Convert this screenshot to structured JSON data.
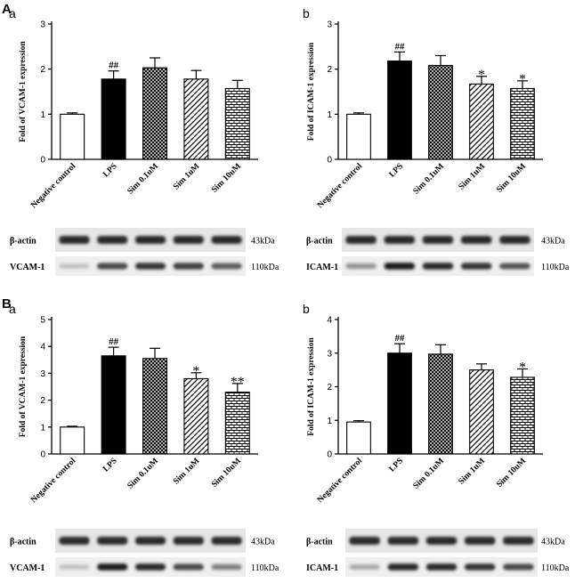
{
  "figure": {
    "panels": [
      {
        "letter": "A",
        "charts": [
          "Aa",
          "Ab"
        ]
      },
      {
        "letter": "B",
        "charts": [
          "Ba",
          "Bb"
        ]
      }
    ]
  },
  "chart_data": [
    {
      "id": "Aa",
      "type": "bar",
      "sub": "a",
      "ylabel": "Fold of VCAM-1 expression",
      "categories": [
        "Negative control",
        "LPS",
        "Sim 0.1uM",
        "Sim 1uM",
        "Sim 10uM"
      ],
      "values": [
        1.0,
        1.78,
        2.03,
        1.78,
        1.57
      ],
      "errors": [
        0.03,
        0.18,
        0.22,
        0.19,
        0.18
      ],
      "significance": [
        "",
        "##",
        "",
        "",
        ""
      ],
      "patterns": [
        "white",
        "black",
        "crosshatch",
        "diagonal",
        "brick"
      ],
      "ylim": [
        0,
        3
      ],
      "yticks": [
        0,
        1,
        2,
        3
      ],
      "blot": {
        "rows": [
          {
            "label": "β-actin",
            "size": "43kDa",
            "band": [
              0.9,
              0.9,
              0.9,
              0.9,
              0.9
            ]
          },
          {
            "label": "VCAM-1",
            "size": "110kDa",
            "band": [
              0.2,
              0.75,
              0.85,
              0.8,
              0.65
            ]
          }
        ]
      }
    },
    {
      "id": "Ab",
      "type": "bar",
      "sub": "b",
      "ylabel": "Fold of ICAM-1 expression",
      "categories": [
        "Negative control",
        "LPS",
        "Sim 0.1uM",
        "Sim 1uM",
        "Sim 10uM"
      ],
      "values": [
        1.0,
        2.18,
        2.08,
        1.67,
        1.57
      ],
      "errors": [
        0.03,
        0.2,
        0.22,
        0.17,
        0.17
      ],
      "significance": [
        "",
        "##",
        "",
        "*",
        "*"
      ],
      "patterns": [
        "white",
        "black",
        "crosshatch",
        "diagonal",
        "brick"
      ],
      "ylim": [
        0,
        3
      ],
      "yticks": [
        0,
        1,
        2,
        3
      ],
      "blot": {
        "rows": [
          {
            "label": "β-actin",
            "size": "43kDa",
            "band": [
              0.9,
              0.9,
              0.9,
              0.9,
              0.9
            ]
          },
          {
            "label": "ICAM-1",
            "size": "110kDa",
            "band": [
              0.4,
              0.95,
              0.9,
              0.85,
              0.7
            ]
          }
        ]
      }
    },
    {
      "id": "Ba",
      "type": "bar",
      "sub": "a",
      "ylabel": "Fold of VCAM-1 expression",
      "categories": [
        "Negative control",
        "LPS",
        "Sim 0.1uM",
        "Sim 1uM",
        "Sim 10uM"
      ],
      "values": [
        1.0,
        3.65,
        3.55,
        2.8,
        2.3
      ],
      "errors": [
        0.03,
        0.32,
        0.38,
        0.22,
        0.32
      ],
      "significance": [
        "",
        "##",
        "",
        "*",
        "**"
      ],
      "patterns": [
        "white",
        "black",
        "crosshatch",
        "diagonal",
        "brick"
      ],
      "ylim": [
        0,
        5
      ],
      "yticks": [
        0,
        1,
        2,
        3,
        4,
        5
      ],
      "blot": {
        "rows": [
          {
            "label": "β-actin",
            "size": "43kDa",
            "band": [
              0.9,
              0.9,
              0.9,
              0.9,
              0.9
            ]
          },
          {
            "label": "VCAM-1",
            "size": "110kDa",
            "band": [
              0.2,
              0.95,
              0.9,
              0.75,
              0.5
            ]
          }
        ]
      }
    },
    {
      "id": "Bb",
      "type": "bar",
      "sub": "b",
      "ylabel": "Fold of ICAM-1 expression",
      "categories": [
        "Negative control",
        "LPS",
        "Sim 0.1uM",
        "Sim 1uM",
        "Sim 10uM"
      ],
      "values": [
        0.95,
        3.0,
        2.97,
        2.5,
        2.28
      ],
      "errors": [
        0.04,
        0.28,
        0.28,
        0.18,
        0.25
      ],
      "significance": [
        "",
        "##",
        "",
        "",
        "*"
      ],
      "patterns": [
        "white",
        "black",
        "crosshatch",
        "diagonal",
        "brick"
      ],
      "ylim": [
        0,
        4
      ],
      "yticks": [
        0,
        1,
        2,
        3,
        4
      ],
      "blot": {
        "rows": [
          {
            "label": "β-actin",
            "size": "43kDa",
            "band": [
              0.9,
              0.9,
              0.9,
              0.9,
              0.9
            ]
          },
          {
            "label": "ICAM-1",
            "size": "110kDa",
            "band": [
              0.3,
              0.9,
              0.9,
              0.85,
              0.75
            ]
          }
        ]
      }
    }
  ]
}
